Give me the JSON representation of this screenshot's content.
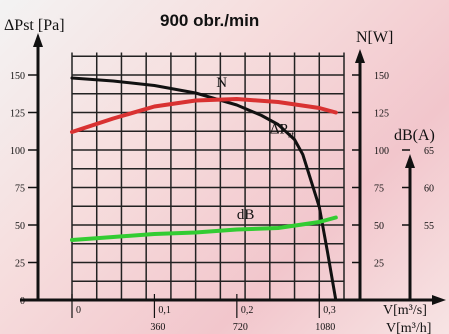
{
  "chart_data": {
    "type": "line",
    "title": "900 obr./min",
    "axes": {
      "left": {
        "label": "ΔPst [Pa]",
        "ticks": [
          0,
          25,
          50,
          75,
          100,
          125,
          150
        ],
        "range": [
          0,
          165
        ]
      },
      "right_power": {
        "label": "N[W]",
        "ticks": [
          25,
          50,
          75,
          100,
          125,
          150
        ]
      },
      "right_db": {
        "label": "dB(A)",
        "ticks": [
          55,
          60,
          65
        ]
      },
      "x": {
        "label": "V[m³/s]",
        "label_secondary": "V[m³/h]",
        "ticks": [
          "0",
          "0,1",
          "0,2",
          "0,3"
        ],
        "ticks_secondary": [
          "360",
          "720",
          "1080"
        ],
        "range": [
          0,
          0.33
        ]
      }
    },
    "grid": true,
    "series": [
      {
        "name": "ΔPst",
        "label": "ΔP",
        "label_sub": "st",
        "color": "#111111",
        "axis": "left",
        "x": [
          0,
          0.05,
          0.1,
          0.15,
          0.2,
          0.23,
          0.25,
          0.27,
          0.28,
          0.3,
          0.31,
          0.32
        ],
        "y": [
          148,
          146,
          143,
          138,
          130,
          123,
          117,
          107,
          97,
          62,
          32,
          0
        ]
      },
      {
        "name": "N",
        "label": "N",
        "color": "#d93232",
        "axis": "left",
        "x": [
          0,
          0.05,
          0.1,
          0.15,
          0.2,
          0.25,
          0.3,
          0.32
        ],
        "y": [
          112,
          121,
          129,
          133,
          134,
          132,
          128,
          125
        ]
      },
      {
        "name": "dB",
        "label": "dB",
        "color": "#33cc33",
        "axis": "left",
        "x": [
          0,
          0.05,
          0.1,
          0.15,
          0.2,
          0.25,
          0.3,
          0.32
        ],
        "y": [
          40,
          42,
          44,
          45,
          47,
          48,
          52,
          55
        ]
      }
    ]
  }
}
